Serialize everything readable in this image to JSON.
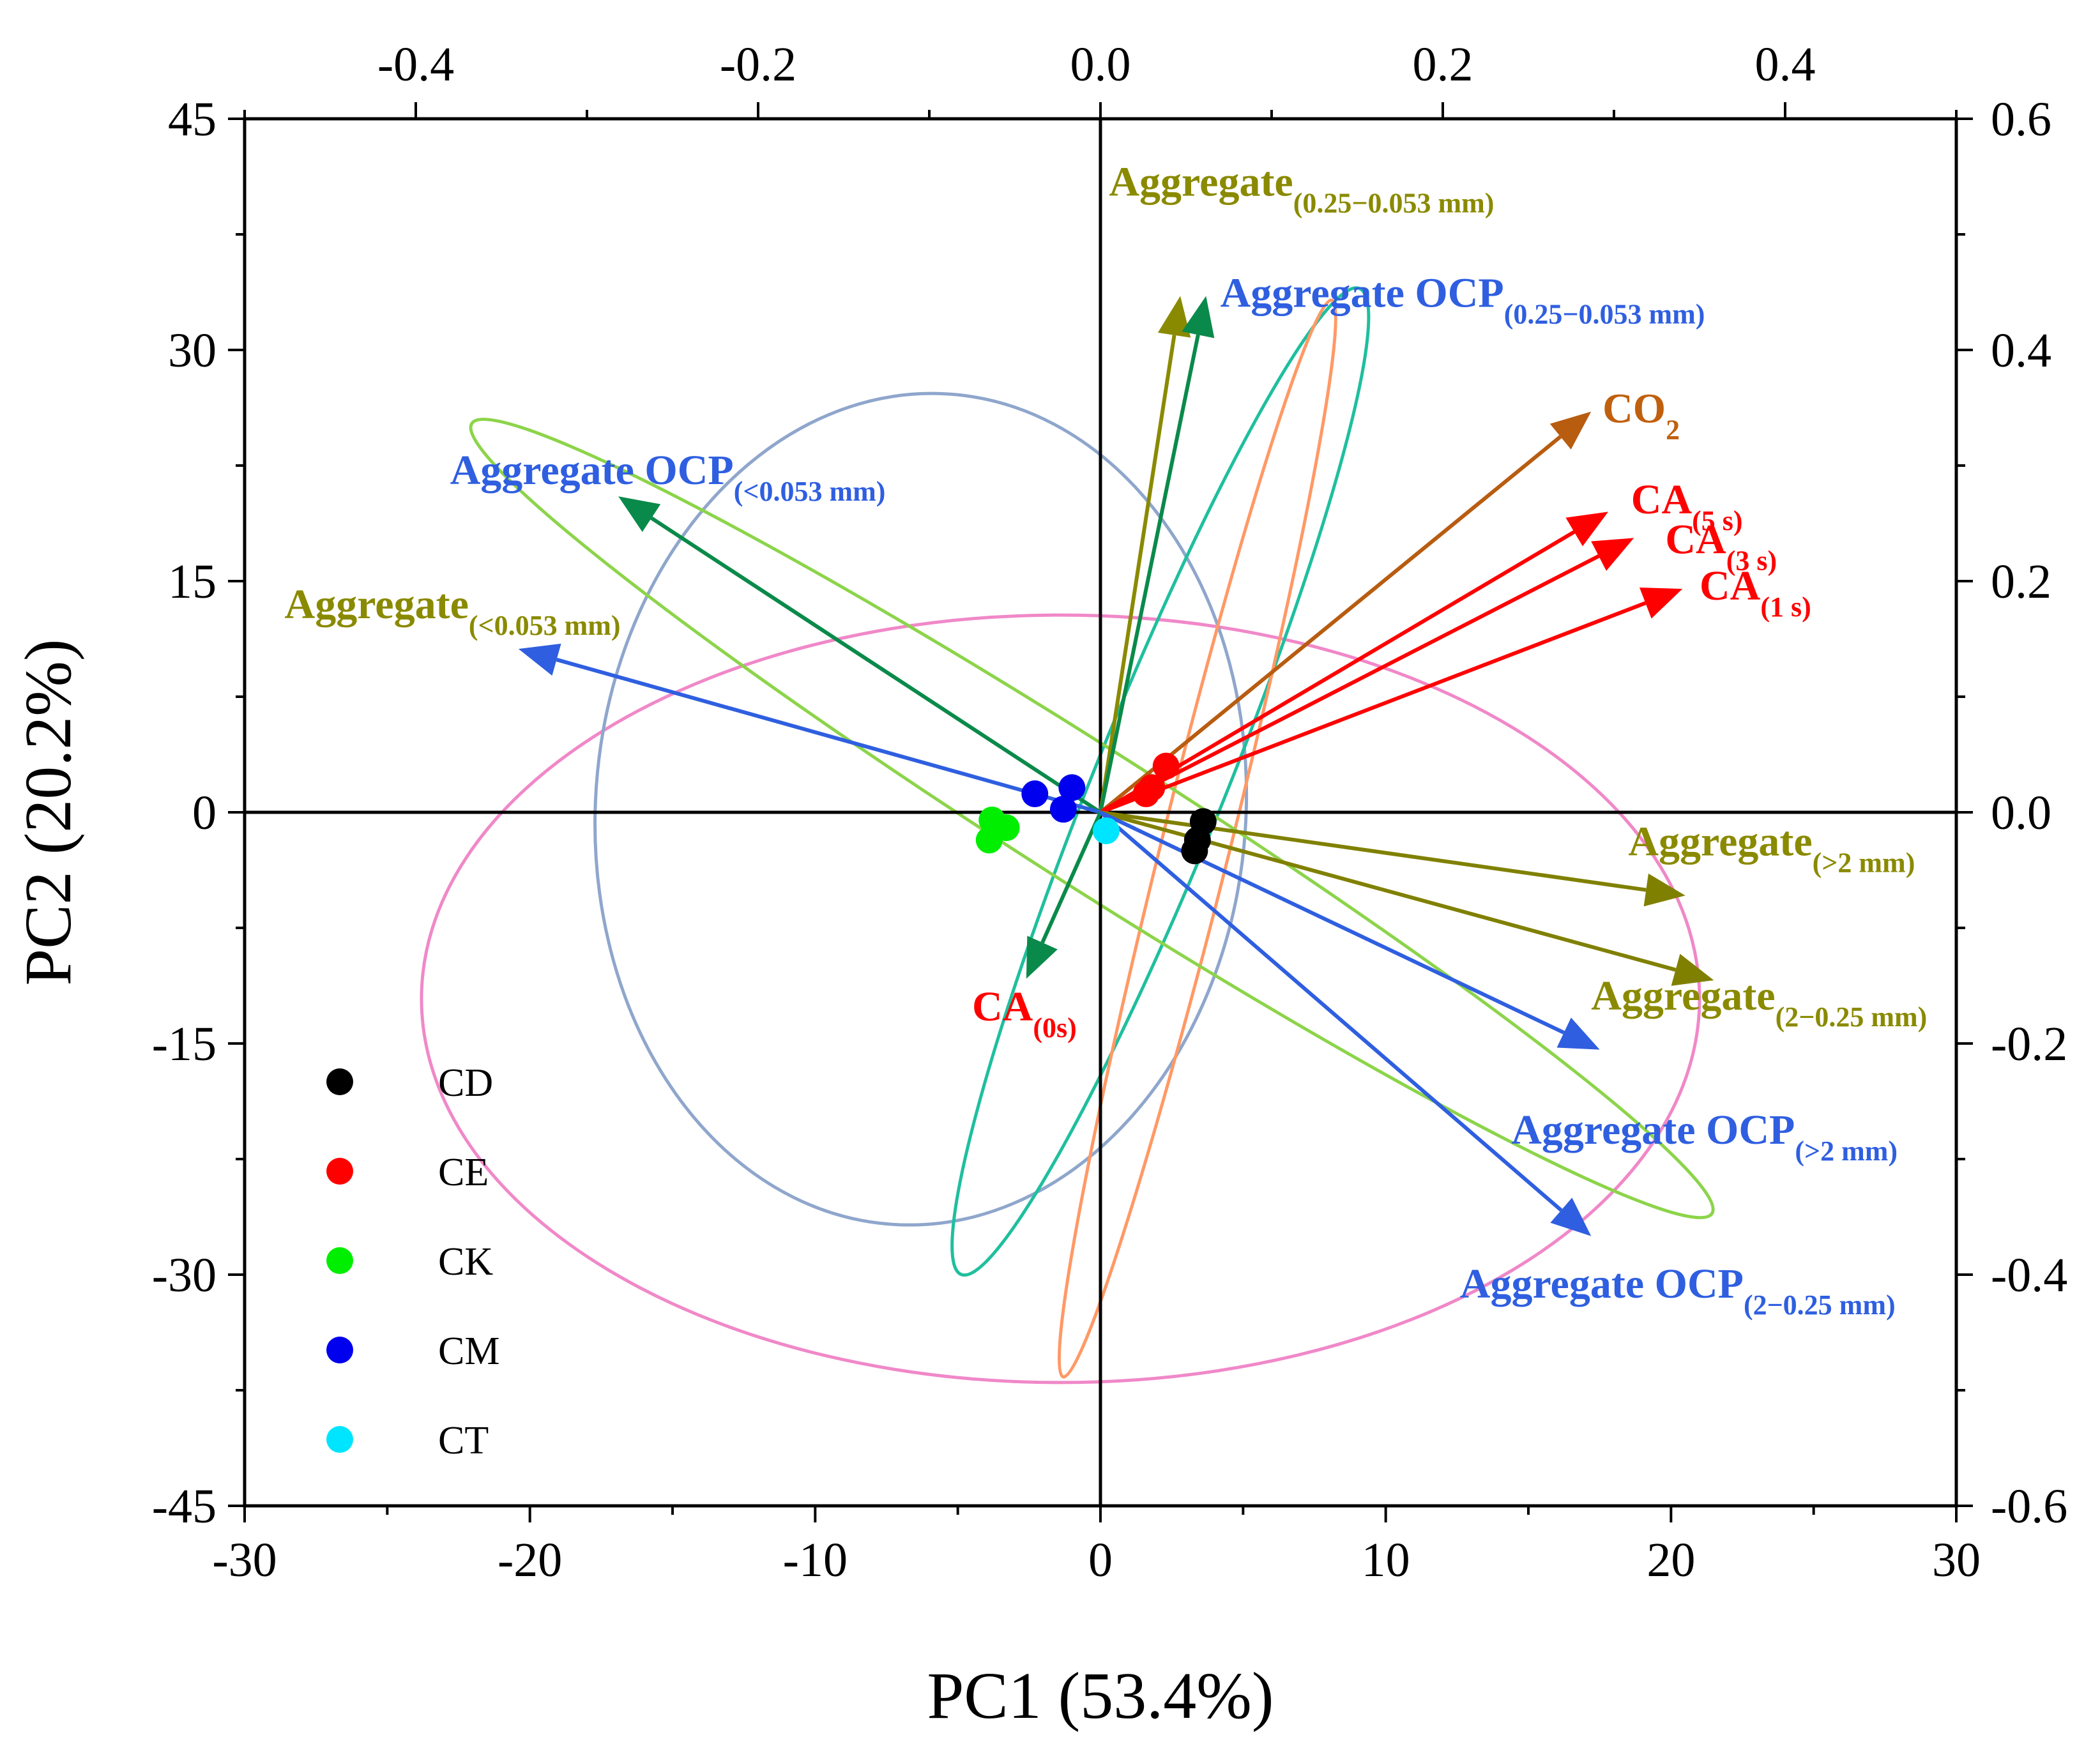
{
  "chart_data": {
    "type": "scatter",
    "subtype": "pca-biplot",
    "xlabel": "PC1 (53.4%)",
    "ylabel": "PC2 (20.2%)",
    "xlim": [
      -30,
      30
    ],
    "ylim": [
      -45,
      45
    ],
    "x_ticks": [
      -30,
      -20,
      -10,
      0,
      10,
      20,
      30
    ],
    "y_ticks": [
      -45,
      -30,
      -15,
      0,
      15,
      30,
      45
    ],
    "top_axis": {
      "lim": [
        -0.5,
        0.5
      ],
      "ticks": [
        -0.4,
        -0.2,
        0.0,
        0.2,
        0.4
      ],
      "labels": [
        "-0.4",
        "-0.2",
        "0.0",
        "0.2",
        "0.4"
      ]
    },
    "right_axis": {
      "lim": [
        -0.6,
        0.6
      ],
      "ticks": [
        -0.6,
        -0.4,
        -0.2,
        0.0,
        0.2,
        0.4,
        0.6
      ],
      "labels": [
        "-0.6",
        "-0.4",
        "-0.2",
        "0.0",
        "0.2",
        "0.4",
        "0.6"
      ]
    },
    "groups": [
      {
        "name": "CD",
        "color": "#000000",
        "points": [
          [
            3.6,
            -0.6
          ],
          [
            3.4,
            -1.8
          ],
          [
            3.3,
            -2.5
          ]
        ]
      },
      {
        "name": "CE",
        "color": "#ff0000",
        "points": [
          [
            2.3,
            3.0
          ],
          [
            1.8,
            1.6
          ],
          [
            1.6,
            1.2
          ]
        ]
      },
      {
        "name": "CK",
        "color": "#00ee00",
        "points": [
          [
            -3.8,
            -0.5
          ],
          [
            -3.3,
            -1.0
          ],
          [
            -3.9,
            -1.8
          ]
        ]
      },
      {
        "name": "CM",
        "color": "#0000ee",
        "points": [
          [
            -2.3,
            1.2
          ],
          [
            -1.0,
            1.6
          ],
          [
            -1.3,
            0.2
          ]
        ]
      },
      {
        "name": "CT",
        "color": "#00e5ff",
        "points": [
          [
            0.2,
            -1.2
          ]
        ]
      }
    ],
    "ellipses": [
      {
        "color": "#f088c8",
        "cx": -1.4,
        "cy": -12.1,
        "rx": 22.4,
        "ry": 24.9,
        "angle": 0
      },
      {
        "color": "#8fa6cc",
        "cx": -6.3,
        "cy": 0.2,
        "rx": 11.4,
        "ry": 27.0,
        "angle": 4
      },
      {
        "color": "#1fbf9e",
        "cx": 2.1,
        "cy": 2.0,
        "rx": 2.3,
        "ry": 34.5,
        "angle": 22
      },
      {
        "color": "#ff9966",
        "cx": 3.4,
        "cy": -1.7,
        "rx": 1.2,
        "ry": 36.0,
        "angle": 14
      },
      {
        "color": "#8cd44a",
        "cx": -0.3,
        "cy": -0.4,
        "rx": 2.4,
        "ry": 47.7,
        "angle": -57.5
      }
    ],
    "vectors": [
      {
        "label": "Aggregate",
        "sub": "(0.25−0.053 mm)",
        "color": "#8a8a00",
        "labelColor": "#8a8a00",
        "x": 2.8,
        "y": 33.5,
        "labelPos": [
          0.3,
          40
        ],
        "anchor": "start"
      },
      {
        "label": "Aggregate OCP",
        "sub": "(0.25−0.053 mm)",
        "color": "#0a8a4a",
        "labelColor": "#2f5fe0",
        "x": 3.7,
        "y": 33.5,
        "labelPos": [
          4.2,
          32.8
        ],
        "anchor": "start"
      },
      {
        "label": "CO",
        "sub": "2",
        "color": "#b85c10",
        "labelColor": "#c0600e",
        "x": 17.2,
        "y": 26.0,
        "labelPos": [
          17.6,
          25.3
        ],
        "anchor": "start",
        "subBaseline": "down"
      },
      {
        "label": "CA",
        "sub": "(5 s)",
        "color": "#ff0000",
        "labelColor": "#ff0000",
        "x": 17.8,
        "y": 19.5,
        "labelPos": [
          18.6,
          19.4
        ],
        "anchor": "start"
      },
      {
        "label": "CA",
        "sub": "(3 s)",
        "color": "#ff0000",
        "labelColor": "#ff0000",
        "x": 18.7,
        "y": 17.8,
        "labelPos": [
          19.8,
          16.8
        ],
        "anchor": "start"
      },
      {
        "label": "CA",
        "sub": "(1 s)",
        "color": "#ff0000",
        "labelColor": "#ff0000",
        "x": 20.4,
        "y": 14.5,
        "labelPos": [
          21.0,
          13.8
        ],
        "anchor": "start"
      },
      {
        "label": "Aggregate OCP",
        "sub": "(<0.053 mm)",
        "color": "#0a8a4a",
        "labelColor": "#2f5fe0",
        "x": -16.9,
        "y": 20.5,
        "labelPos": [
          -22.8,
          21.3
        ],
        "anchor": "start"
      },
      {
        "label": "Aggregate",
        "sub": "(<0.053 mm)",
        "color": "#2f5fe0",
        "labelColor": "#8a8a00",
        "x": -20.4,
        "y": 10.6,
        "labelPos": [
          -28.6,
          12.6
        ],
        "anchor": "start"
      },
      {
        "label": "Aggregate",
        "sub": "(>2 mm)",
        "color": "#808000",
        "labelColor": "#8a8a00",
        "x": 20.5,
        "y": -5.4,
        "labelPos": [
          18.5,
          -2.8
        ],
        "anchor": "start"
      },
      {
        "label": "Aggregate",
        "sub": "(2−0.25 mm)",
        "color": "#808000",
        "labelColor": "#8a8a00",
        "x": 21.5,
        "y": -10.9,
        "labelPos": [
          17.2,
          -12.8
        ],
        "anchor": "start"
      },
      {
        "label": "CA",
        "sub": "(0s)",
        "color": "#0a8a4a",
        "labelColor": "#ff0000",
        "x": -2.6,
        "y": -10.8,
        "labelPos": [
          -4.5,
          -13.5
        ],
        "anchor": "start"
      },
      {
        "label": "Aggregate OCP",
        "sub": "(>2 mm)",
        "color": "#2f5fe0",
        "labelColor": "#2f5fe0",
        "x": 17.5,
        "y": -15.4,
        "labelPos": [
          14.4,
          -21.5
        ],
        "anchor": "start"
      },
      {
        "label": "Aggregate OCP",
        "sub": "(2−0.25 mm)",
        "color": "#2f5fe0",
        "labelColor": "#2f5fe0",
        "x": 17.2,
        "y": -27.5,
        "labelPos": [
          12.6,
          -31.5
        ],
        "anchor": "start"
      }
    ],
    "legend": {
      "position": "bottom-left",
      "entries": [
        "CD",
        "CE",
        "CK",
        "CM",
        "CT"
      ]
    }
  }
}
